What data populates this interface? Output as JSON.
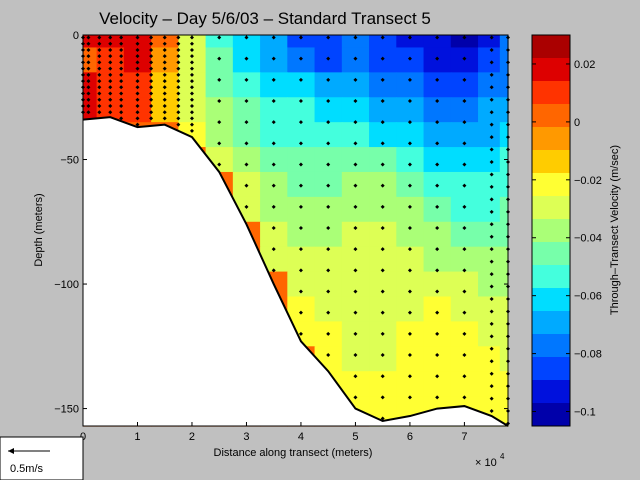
{
  "chart_data": {
    "type": "heatmap",
    "title": "Velocity – Day 5/6/03 – Standard Transect 5",
    "xlabel": "Distance along transect (meters)",
    "x_multiplier": "× 10",
    "x_multiplier_exp": "4",
    "ylabel": "Depth (meters)",
    "xlim": [
      0,
      78000
    ],
    "ylim": [
      -157,
      0
    ],
    "xticks": [
      0,
      1,
      2,
      3,
      4,
      5,
      6,
      7
    ],
    "yticks": [
      0,
      -50,
      -100,
      -150
    ],
    "colorbar": {
      "label": "Through–Transect Velocity (m/sec)",
      "range": [
        -0.105,
        0.03
      ],
      "ticks": [
        "0.02",
        "0",
        "−0.02",
        "−0.04",
        "−0.06",
        "−0.08",
        "−0.1"
      ],
      "tick_values": [
        0.02,
        0,
        -0.02,
        -0.04,
        -0.06,
        -0.08,
        -0.1
      ],
      "colors": [
        "#aa0000",
        "#dd0000",
        "#ff3300",
        "#ff6600",
        "#ff9900",
        "#ffcc00",
        "#ffff33",
        "#ddff55",
        "#aaff77",
        "#77ffaa",
        "#44ffdd",
        "#00ddff",
        "#00aaff",
        "#0077ff",
        "#0044ff",
        "#0011dd",
        "#0000aa"
      ]
    },
    "bathymetry": {
      "x": [
        0,
        5000,
        10000,
        15000,
        20000,
        25000,
        30000,
        35000,
        40000,
        45000,
        50000,
        55000,
        60000,
        65000,
        70000,
        75000,
        78000
      ],
      "depth": [
        -34,
        -33,
        -37,
        -36,
        -41,
        -55,
        -76,
        -100,
        -123,
        -135,
        -150,
        -155,
        -153,
        -150,
        -149,
        -153,
        -157
      ]
    },
    "velocity_grid": {
      "x": [
        0,
        5000,
        10000,
        15000,
        20000,
        25000,
        30000,
        35000,
        40000,
        45000,
        50000,
        55000,
        60000,
        65000,
        70000,
        75000,
        78000
      ],
      "depth": [
        0,
        -10,
        -20,
        -30,
        -40,
        -50,
        -60,
        -70,
        -80,
        -90,
        -100,
        -110,
        -120,
        -130,
        -140,
        -150,
        -157
      ],
      "v": [
        [
          0.015,
          0.018,
          0.019,
          0.0,
          -0.03,
          -0.05,
          -0.065,
          -0.072,
          -0.082,
          -0.085,
          -0.08,
          -0.087,
          -0.09,
          -0.095,
          -0.1,
          -0.09,
          -0.08
        ],
        [
          0.005,
          0.012,
          0.018,
          -0.005,
          -0.032,
          -0.048,
          -0.06,
          -0.068,
          -0.075,
          -0.082,
          -0.078,
          -0.083,
          -0.088,
          -0.092,
          -0.097,
          -0.088,
          -0.08
        ],
        [
          0.015,
          0.01,
          0.012,
          -0.01,
          -0.033,
          -0.044,
          -0.052,
          -0.06,
          -0.065,
          -0.07,
          -0.07,
          -0.075,
          -0.08,
          -0.085,
          -0.088,
          -0.08,
          -0.075
        ],
        [
          0.02,
          0.01,
          0.008,
          -0.012,
          -0.028,
          -0.04,
          -0.048,
          -0.055,
          -0.057,
          -0.062,
          -0.065,
          -0.068,
          -0.072,
          -0.075,
          -0.078,
          -0.072,
          -0.068
        ],
        [
          0.0,
          0.0,
          0.0,
          0.0,
          -0.025,
          -0.035,
          -0.045,
          -0.05,
          -0.052,
          -0.054,
          -0.055,
          -0.058,
          -0.063,
          -0.068,
          -0.07,
          -0.066,
          -0.062
        ],
        [
          0.0,
          0.0,
          0.0,
          0.0,
          0.0,
          -0.03,
          -0.04,
          -0.045,
          -0.046,
          -0.048,
          -0.046,
          -0.048,
          -0.055,
          -0.06,
          -0.063,
          -0.06,
          -0.056
        ],
        [
          0.0,
          0.0,
          0.0,
          0.0,
          0.0,
          0.0,
          -0.033,
          -0.04,
          -0.042,
          -0.042,
          -0.04,
          -0.04,
          -0.046,
          -0.052,
          -0.056,
          -0.055,
          -0.05
        ],
        [
          0.0,
          0.0,
          0.0,
          0.0,
          0.0,
          0.0,
          -0.028,
          -0.035,
          -0.038,
          -0.038,
          -0.036,
          -0.034,
          -0.038,
          -0.046,
          -0.05,
          -0.05,
          -0.048
        ],
        [
          0.0,
          0.0,
          0.0,
          0.0,
          0.0,
          0.0,
          0.0,
          -0.03,
          -0.034,
          -0.035,
          -0.033,
          -0.032,
          -0.034,
          -0.04,
          -0.044,
          -0.045,
          -0.044
        ],
        [
          0.0,
          0.0,
          0.0,
          0.0,
          0.0,
          0.0,
          0.0,
          -0.027,
          -0.03,
          -0.032,
          -0.032,
          -0.03,
          -0.031,
          -0.034,
          -0.038,
          -0.04,
          -0.04
        ],
        [
          0.0,
          0.0,
          0.0,
          0.0,
          0.0,
          0.0,
          0.0,
          0.0,
          -0.027,
          -0.03,
          -0.032,
          -0.03,
          -0.028,
          -0.028,
          -0.032,
          -0.035,
          -0.037
        ],
        [
          0.0,
          0.0,
          0.0,
          0.0,
          0.0,
          0.0,
          0.0,
          0.0,
          -0.022,
          -0.028,
          -0.032,
          -0.03,
          -0.026,
          -0.024,
          -0.027,
          -0.03,
          -0.033
        ],
        [
          0.0,
          0.0,
          0.0,
          0.0,
          0.0,
          0.0,
          0.0,
          0.0,
          -0.018,
          -0.025,
          -0.03,
          -0.029,
          -0.025,
          -0.022,
          -0.023,
          -0.027,
          -0.03
        ],
        [
          0.0,
          0.0,
          0.0,
          0.0,
          0.0,
          0.0,
          0.0,
          0.0,
          0.0,
          -0.022,
          -0.027,
          -0.026,
          -0.024,
          -0.021,
          -0.021,
          -0.024,
          -0.027
        ],
        [
          0.0,
          0.0,
          0.0,
          0.0,
          0.0,
          0.0,
          0.0,
          0.0,
          0.0,
          -0.02,
          -0.024,
          -0.024,
          -0.022,
          -0.02,
          -0.02,
          -0.022,
          -0.025
        ],
        [
          0.0,
          0.0,
          0.0,
          0.0,
          0.0,
          0.0,
          0.0,
          0.0,
          0.0,
          0.0,
          -0.02,
          -0.022,
          -0.02,
          -0.019,
          -0.019,
          -0.021,
          -0.023
        ],
        [
          0.0,
          0.0,
          0.0,
          0.0,
          0.0,
          0.0,
          0.0,
          0.0,
          0.0,
          0.0,
          0.0,
          -0.02,
          -0.019,
          -0.018,
          -0.018,
          -0.02,
          -0.022
        ]
      ]
    },
    "stations": {
      "x": [
        0,
        1000,
        3000,
        5000,
        7000,
        10000,
        12500,
        15000,
        17500,
        20000,
        25000,
        30000,
        35000,
        40000,
        45000,
        50000,
        55000,
        60000,
        65000,
        70000,
        75000,
        78000
      ],
      "depth_step": 5
    },
    "scale_arrow": {
      "label": "0.5m/s",
      "value": 0.5
    },
    "grid": false,
    "legend": "colorbar-right"
  }
}
